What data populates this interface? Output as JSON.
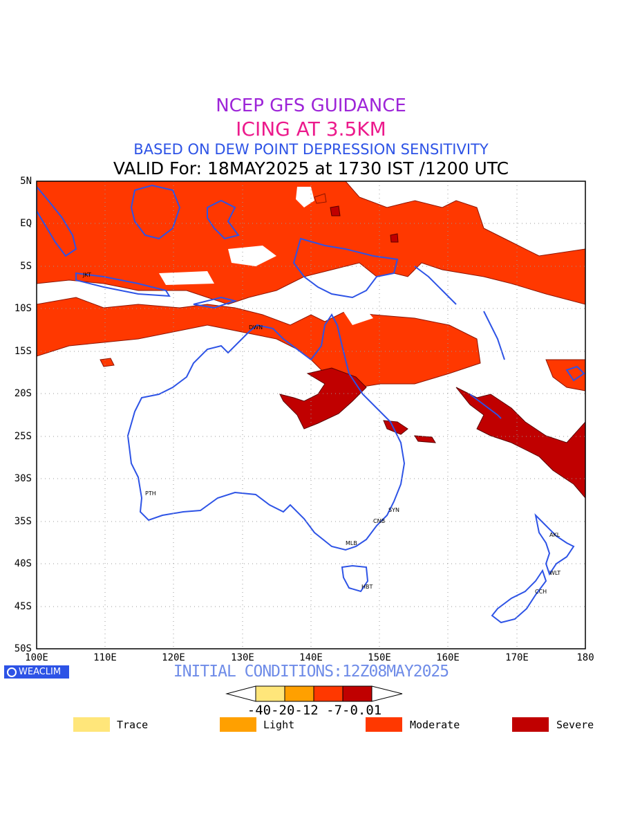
{
  "title": {
    "line1": "NCEP GFS GUIDANCE",
    "line2": "ICING AT 3.5KM",
    "line3": "BASED ON DEW POINT DEPRESSION SENSITIVITY",
    "line4": "VALID For: 18MAY2025 at 1730 IST /1200 UTC"
  },
  "axes": {
    "lat_labels": [
      "5N",
      "EQ",
      "5S",
      "10S",
      "15S",
      "20S",
      "25S",
      "30S",
      "35S",
      "40S",
      "45S",
      "50S"
    ],
    "lon_labels": [
      "100E",
      "110E",
      "120E",
      "130E",
      "140E",
      "150E",
      "160E",
      "170E",
      "180"
    ]
  },
  "cities": [
    "JKT",
    "DWN",
    "PTH",
    "SYN",
    "CNB",
    "MLB",
    "HBT",
    "AKL",
    "WLT",
    "CCH"
  ],
  "logo_text": "WEACLIM",
  "initial_conditions": "INITIAL CONDITIONS:12Z08MAY2025",
  "colorbar": {
    "labels": "-40-20-12 -7-0.01",
    "colors": [
      "#ffe67a",
      "#ffa000",
      "#ff3800",
      "#c00000"
    ]
  },
  "legend": [
    {
      "label": "Trace",
      "color": "#ffe67a"
    },
    {
      "label": "Light",
      "color": "#ffa000"
    },
    {
      "label": "Moderate",
      "color": "#ff3800"
    },
    {
      "label": "Severe",
      "color": "#c00000"
    }
  ],
  "colors": {
    "coast": "#2d53e6",
    "moderate": "#ff3800",
    "severe": "#c00000"
  }
}
